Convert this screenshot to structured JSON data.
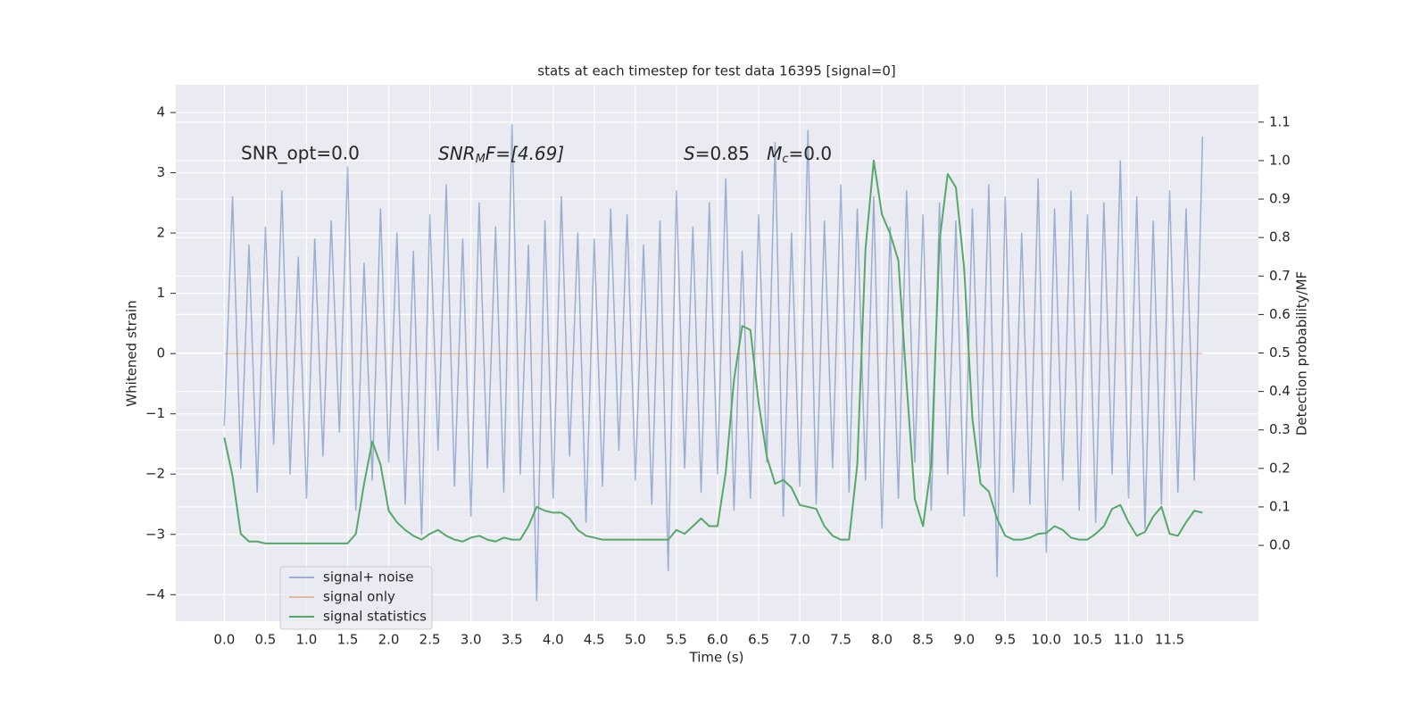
{
  "chart_data": {
    "type": "line",
    "title": "stats at each timestep for test data 16395 [signal=0]",
    "xlabel": "Time (s)",
    "ylabel": "Whitened strain",
    "y2label": "Detection probability/MF",
    "annotations": [
      "SNR_opt=0.0",
      [
        "SNR",
        "M",
        "F=[4.69]"
      ],
      [
        "S",
        "=0.85   ",
        "M",
        "c",
        "=0.0"
      ]
    ],
    "grid": true,
    "legend": "lower left",
    "x": [
      0,
      0.1,
      0.2,
      0.3,
      0.4,
      0.5,
      0.6,
      0.7,
      0.8,
      0.9,
      1,
      1.1,
      1.2,
      1.3,
      1.4,
      1.5,
      1.6,
      1.7,
      1.8,
      1.9,
      2,
      2.1,
      2.2,
      2.3,
      2.4,
      2.5,
      2.6,
      2.7,
      2.8,
      2.9,
      3,
      3.1,
      3.2,
      3.3,
      3.4,
      3.5,
      3.6,
      3.7,
      3.8,
      3.9,
      4,
      4.1,
      4.2,
      4.3,
      4.4,
      4.5,
      4.6,
      4.7,
      4.8,
      4.9,
      5,
      5.1,
      5.2,
      5.3,
      5.4,
      5.5,
      5.6,
      5.7,
      5.8,
      5.9,
      6,
      6.1,
      6.2,
      6.3,
      6.4,
      6.5,
      6.6,
      6.7,
      6.8,
      6.9,
      7,
      7.1,
      7.2,
      7.3,
      7.4,
      7.5,
      7.6,
      7.7,
      7.8,
      7.9,
      8,
      8.1,
      8.2,
      8.3,
      8.4,
      8.5,
      8.6,
      8.7,
      8.8,
      8.9,
      9,
      9.1,
      9.2,
      9.3,
      9.4,
      9.5,
      9.6,
      9.7,
      9.8,
      9.9,
      10,
      10.1,
      10.2,
      10.3,
      10.4,
      10.5,
      10.6,
      10.7,
      10.8,
      10.9,
      11,
      11.1,
      11.2,
      11.3,
      11.4,
      11.5,
      11.6,
      11.7,
      11.8,
      11.9
    ],
    "series": [
      {
        "name": "signal+ noise",
        "color": "#4c72b0",
        "opacity": 0.5,
        "values": [
          -1.2,
          2.6,
          -1.9,
          1.8,
          -2.3,
          2.1,
          -1.5,
          2.7,
          -2.0,
          1.6,
          -2.4,
          1.9,
          -1.7,
          2.2,
          -1.3,
          3.1,
          -2.6,
          1.5,
          -2.1,
          2.4,
          -1.8,
          2.0,
          -2.5,
          1.7,
          -3.0,
          2.3,
          -1.6,
          2.8,
          -2.2,
          1.9,
          -2.7,
          2.5,
          -1.9,
          2.1,
          -2.3,
          3.8,
          -2.0,
          1.8,
          -4.1,
          2.2,
          -2.4,
          2.6,
          -1.7,
          2.0,
          -2.8,
          1.9,
          -2.2,
          2.4,
          -1.6,
          2.3,
          -2.1,
          1.8,
          -2.5,
          2.2,
          -3.6,
          2.7,
          -1.9,
          2.1,
          -2.3,
          2.5,
          -2.0,
          2.9,
          -2.6,
          1.7,
          -2.4,
          2.3,
          -1.8,
          3.5,
          -2.7,
          2.0,
          -2.2,
          3.7,
          -2.5,
          2.2,
          -1.9,
          2.8,
          -2.3,
          2.4,
          -2.1,
          2.6,
          -2.9,
          2.1,
          -2.4,
          2.7,
          -1.8,
          2.3,
          -2.6,
          2.5,
          -2.0,
          2.2,
          -2.7,
          2.4,
          -1.9,
          2.8,
          -3.7,
          2.6,
          -2.3,
          2.0,
          -2.5,
          2.9,
          -3.3,
          2.4,
          -2.1,
          2.7,
          -2.6,
          2.3,
          -2.8,
          2.5,
          -2.0,
          3.2,
          -2.4,
          2.6,
          -2.9,
          2.2,
          -2.5,
          2.7,
          -2.3,
          2.4,
          -2.1,
          3.6
        ]
      },
      {
        "name": "signal only",
        "color": "#dd8452",
        "opacity": 0.5,
        "values": [
          0,
          0,
          0,
          0,
          0,
          0,
          0,
          0,
          0,
          0,
          0,
          0,
          0,
          0,
          0,
          0,
          0,
          0,
          0,
          0,
          0,
          0,
          0,
          0,
          0,
          0,
          0,
          0,
          0,
          0,
          0,
          0,
          0,
          0,
          0,
          0,
          0,
          0,
          0,
          0,
          0,
          0,
          0,
          0,
          0,
          0,
          0,
          0,
          0,
          0,
          0,
          0,
          0,
          0,
          0,
          0,
          0,
          0,
          0,
          0,
          0,
          0,
          0,
          0,
          0,
          0,
          0,
          0,
          0,
          0,
          0,
          0,
          0,
          0,
          0,
          0,
          0,
          0,
          0,
          0,
          0,
          0,
          0,
          0,
          0,
          0,
          0,
          0,
          0,
          0,
          0,
          0,
          0,
          0,
          0,
          0,
          0,
          0,
          0,
          0,
          0,
          0,
          0,
          0,
          0,
          0,
          0,
          0,
          0,
          0,
          0,
          0,
          0,
          0,
          0,
          0,
          0,
          0,
          0,
          0
        ]
      },
      {
        "name": "signal statistics",
        "color": "#55a868",
        "opacity": 1,
        "axis": "y2",
        "values": [
          0.28,
          0.18,
          0.03,
          0.01,
          0.01,
          0.005,
          0.005,
          0.005,
          0.005,
          0.005,
          0.005,
          0.005,
          0.005,
          0.005,
          0.005,
          0.005,
          0.03,
          0.16,
          0.27,
          0.21,
          0.09,
          0.06,
          0.04,
          0.025,
          0.015,
          0.03,
          0.04,
          0.025,
          0.015,
          0.01,
          0.02,
          0.025,
          0.015,
          0.01,
          0.02,
          0.015,
          0.015,
          0.05,
          0.1,
          0.09,
          0.085,
          0.085,
          0.07,
          0.04,
          0.025,
          0.02,
          0.015,
          0.015,
          0.015,
          0.015,
          0.015,
          0.015,
          0.015,
          0.015,
          0.015,
          0.04,
          0.03,
          0.05,
          0.07,
          0.05,
          0.05,
          0.19,
          0.43,
          0.57,
          0.56,
          0.37,
          0.23,
          0.16,
          0.17,
          0.15,
          0.105,
          0.1,
          0.095,
          0.05,
          0.025,
          0.015,
          0.015,
          0.21,
          0.77,
          1.0,
          0.86,
          0.81,
          0.74,
          0.42,
          0.12,
          0.05,
          0.21,
          0.79,
          0.965,
          0.93,
          0.72,
          0.33,
          0.16,
          0.14,
          0.07,
          0.025,
          0.015,
          0.015,
          0.02,
          0.03,
          0.032,
          0.05,
          0.04,
          0.02,
          0.015,
          0.015,
          0.03,
          0.05,
          0.095,
          0.105,
          0.06,
          0.025,
          0.035,
          0.075,
          0.1,
          0.03,
          0.025,
          0.06,
          0.09,
          0.085
        ]
      }
    ],
    "xlim": [
      -0.59,
      12.58
    ],
    "xticks": [
      {
        "value": 0,
        "label": "0.0"
      },
      0.5,
      {
        "value": 1,
        "label": "1.0"
      },
      1.5,
      {
        "value": 2,
        "label": "2.0"
      },
      2.5,
      {
        "value": 3,
        "label": "3.0"
      },
      3.5,
      {
        "value": 4,
        "label": "4.0"
      },
      4.5,
      {
        "value": 5,
        "label": "5.0"
      },
      5.5,
      {
        "value": 6,
        "label": "6.0"
      },
      6.5,
      {
        "value": 7,
        "label": "7.0"
      },
      7.5,
      {
        "value": 8,
        "label": "8.0"
      },
      8.5,
      {
        "value": 9,
        "label": "9.0"
      },
      9.5,
      {
        "value": 10,
        "label": "10.0"
      },
      10.5,
      {
        "value": 11,
        "label": "11.0"
      },
      11.5
    ],
    "ylim": [
      -4.44,
      4.46
    ],
    "yticks": [
      {
        "value": -4,
        "label": "−4"
      },
      {
        "value": -3,
        "label": "−3"
      },
      {
        "value": -2,
        "label": "−2"
      },
      {
        "value": -1,
        "label": "−1"
      },
      0,
      1,
      2,
      3,
      4
    ],
    "y2lim": [
      -0.197,
      1.197
    ],
    "y2ticks": [
      {
        "value": 0,
        "label": "0.0"
      },
      0.1,
      0.2,
      0.3,
      0.4,
      0.5,
      0.6,
      0.7,
      0.8,
      0.9,
      {
        "value": 1,
        "label": "1.0"
      },
      1.1
    ]
  }
}
